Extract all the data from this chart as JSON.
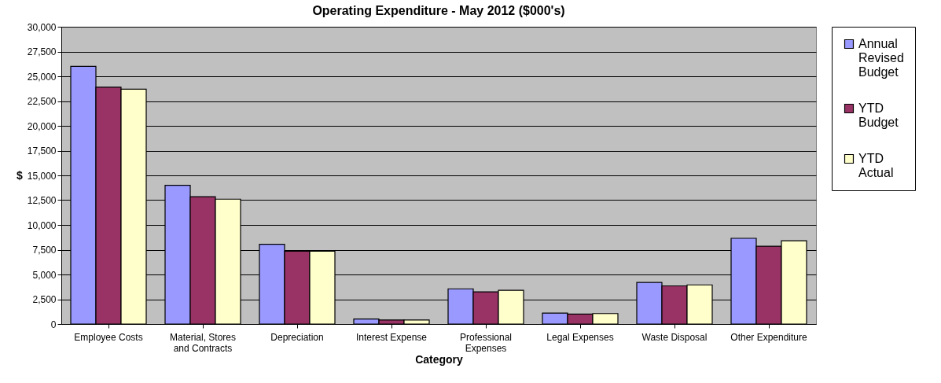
{
  "chart_data": {
    "type": "bar",
    "title": "Operating Expenditure - May 2012 ($000's)",
    "xlabel": "Category",
    "ylabel": "$",
    "categories": [
      "Employee Costs",
      "Material, Stores and Contracts",
      "Depreciation",
      "Interest Expense",
      "Professional Expenses",
      "Legal Expenses",
      "Waste Disposal",
      "Other Expenditure"
    ],
    "series": [
      {
        "name": "Annual Revised Budget",
        "color": "#9999ff",
        "values": [
          26000,
          14000,
          8050,
          500,
          3550,
          1100,
          4200,
          8650
        ]
      },
      {
        "name": "YTD Budget",
        "color": "#993366",
        "values": [
          23900,
          12850,
          7350,
          400,
          3250,
          1000,
          3850,
          7850
        ]
      },
      {
        "name": "YTD Actual",
        "color": "#ffffcc",
        "values": [
          23700,
          12600,
          7350,
          400,
          3400,
          1050,
          3950,
          8400
        ]
      }
    ],
    "ylim": [
      0,
      30000
    ],
    "yticks": [
      0,
      {
        "value": 2500,
        "label": "2,500"
      },
      {
        "value": 5000,
        "label": "5,000"
      },
      {
        "value": 7500,
        "label": "7,500"
      },
      {
        "value": 10000,
        "label": "10,000"
      },
      {
        "value": 12500,
        "label": "12,500"
      },
      {
        "value": 15000,
        "label": "15,000"
      },
      {
        "value": 17500,
        "label": "17,500"
      },
      {
        "value": 20000,
        "label": "20,000"
      },
      {
        "value": 22500,
        "label": "22,500"
      },
      {
        "value": 25000,
        "label": "25,000"
      },
      {
        "value": 27500,
        "label": "27,500"
      },
      {
        "value": 30000,
        "label": "30,000"
      }
    ],
    "grid": "y",
    "legend": "right"
  }
}
